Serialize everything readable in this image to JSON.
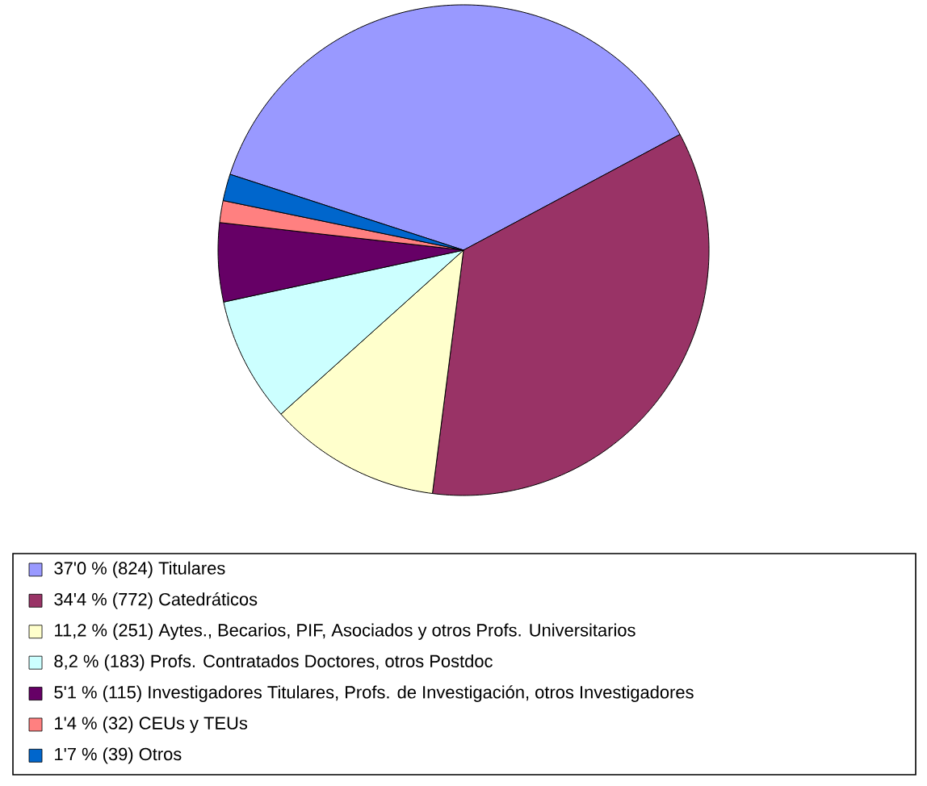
{
  "chart_data": {
    "type": "pie",
    "legend": "bottom",
    "categories": [
      "37'0 % (824) Titulares",
      "34'4 % (772) Catedráticos",
      "11,2 % (251) Aytes., Becarios, PIF, Asociados y otros Profs. Universitarios",
      "8,2 % (183) Profs. Contratados Doctores, otros Postdoc",
      "5'1 % (115) Investigadores Titulares, Profs. de Investigación, otros Investigadores",
      "1'4 % (32) CEUs y TEUs",
      "1'7 % (39) Otros"
    ],
    "values": [
      824,
      772,
      251,
      183,
      115,
      32,
      39
    ],
    "colors": [
      "#9999ff",
      "#993366",
      "#ffffcc",
      "#ccffff",
      "#660066",
      "#ff8080",
      "#0066cc"
    ]
  }
}
